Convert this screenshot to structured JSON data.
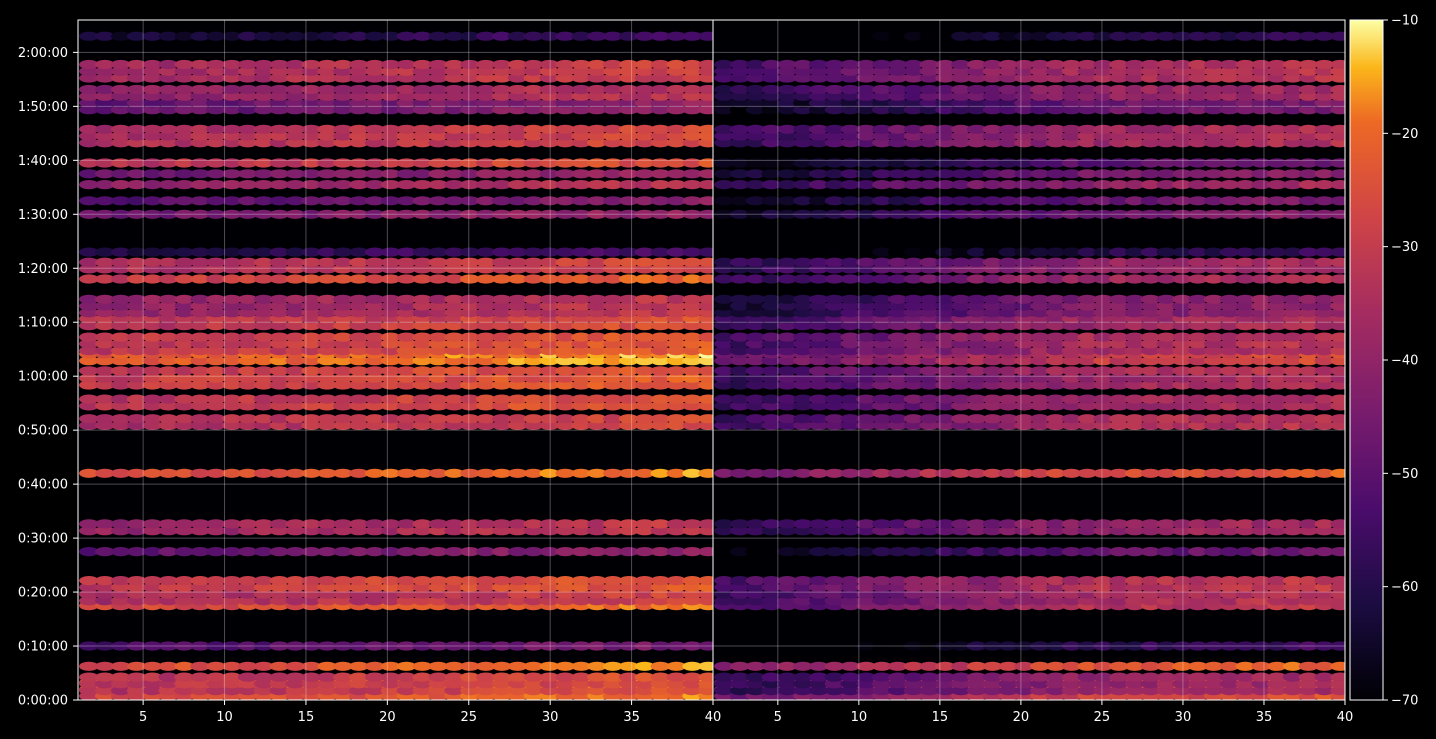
{
  "figure": {
    "background": "#000000",
    "axis_color": "#ffffff",
    "grid_color": "#ffffff"
  },
  "chart_data": {
    "type": "heatmap",
    "title": "",
    "colormap": "inferno",
    "x_tick_labels_left": [
      "5",
      "10",
      "15",
      "20",
      "25",
      "30",
      "35",
      "40"
    ],
    "x_tick_labels_right": [
      "5",
      "10",
      "15",
      "20",
      "25",
      "30",
      "35",
      "40"
    ],
    "y_tick_labels": [
      "0:00:00",
      "0:10:00",
      "0:20:00",
      "0:30:00",
      "0:40:00",
      "0:50:00",
      "1:00:00",
      "1:10:00",
      "1:20:00",
      "1:30:00",
      "1:40:00",
      "1:50:00",
      "2:00:00"
    ],
    "colorbar": {
      "range": [
        -70,
        -10
      ],
      "tick_labels": [
        "−10",
        "−20",
        "−30",
        "−40",
        "−50",
        "−60",
        "−70"
      ]
    },
    "panels": [
      {
        "name": "",
        "x_range": [
          1,
          40
        ],
        "y_range_seconds": [
          0,
          7560
        ],
        "background_level": -70
      },
      {
        "name": "",
        "x_range": [
          1,
          40
        ],
        "y_range_seconds": [
          0,
          7560
        ],
        "background_level": -70
      }
    ],
    "bands": [
      {
        "time": "0:02:00",
        "level_left": -24,
        "level_right": -30,
        "thickness": 3
      },
      {
        "time": "0:03:00",
        "level_left": -30,
        "level_right": -42,
        "thickness": 3
      },
      {
        "time": "0:06:15",
        "level_left": -23,
        "level_right": -26,
        "thickness": 1
      },
      {
        "time": "0:10:00",
        "level_left": -50,
        "level_right": -60,
        "thickness": 1
      },
      {
        "time": "0:17:30",
        "level_left": -24,
        "level_right": -36,
        "thickness": 1
      },
      {
        "time": "0:19:00",
        "level_left": -33,
        "level_right": -38,
        "thickness": 2
      },
      {
        "time": "0:21:30",
        "level_left": -28,
        "level_right": -36,
        "thickness": 2
      },
      {
        "time": "0:27:30",
        "level_left": -46,
        "level_right": -52,
        "thickness": 1
      },
      {
        "time": "0:32:00",
        "level_left": -36,
        "level_right": -42,
        "thickness": 2
      },
      {
        "time": "0:42:00",
        "level_left": -23,
        "level_right": -28,
        "thickness": 1
      },
      {
        "time": "0:51:30",
        "level_left": -32,
        "level_right": -38,
        "thickness": 2
      },
      {
        "time": "0:54:30",
        "level_left": -28,
        "level_right": -40,
        "thickness": 1
      },
      {
        "time": "0:55:45",
        "level_left": -30,
        "level_right": -40,
        "thickness": 1
      },
      {
        "time": "0:59:00",
        "level_left": -27,
        "level_right": -40,
        "thickness": 2
      },
      {
        "time": "1:01:00",
        "level_left": -28,
        "level_right": -38,
        "thickness": 1
      },
      {
        "time": "1:03:30",
        "level_left": -20,
        "level_right": -32,
        "thickness": 2
      },
      {
        "time": "1:06:00",
        "level_left": -28,
        "level_right": -38,
        "thickness": 3
      },
      {
        "time": "1:10:00",
        "level_left": -30,
        "level_right": -40,
        "thickness": 2
      },
      {
        "time": "1:13:00",
        "level_left": -37,
        "level_right": -46,
        "thickness": 3
      },
      {
        "time": "1:18:00",
        "level_left": -27,
        "level_right": -40,
        "thickness": 1
      },
      {
        "time": "1:20:30",
        "level_left": -32,
        "level_right": -42,
        "thickness": 2
      },
      {
        "time": "1:23:00",
        "level_left": -58,
        "level_right": -62,
        "thickness": 1
      },
      {
        "time": "1:30:00",
        "level_left": -44,
        "level_right": -48,
        "thickness": 1
      },
      {
        "time": "1:32:30",
        "level_left": -48,
        "level_right": -50,
        "thickness": 1
      },
      {
        "time": "1:35:30",
        "level_left": -38,
        "level_right": -42,
        "thickness": 1
      },
      {
        "time": "1:37:30",
        "level_left": -44,
        "level_right": -48,
        "thickness": 1
      },
      {
        "time": "1:39:30",
        "level_left": -30,
        "level_right": -52,
        "thickness": 1
      },
      {
        "time": "1:44:30",
        "level_left": -32,
        "level_right": -40,
        "thickness": 3
      },
      {
        "time": "1:50:00",
        "level_left": -46,
        "level_right": -50,
        "thickness": 2
      },
      {
        "time": "1:52:30",
        "level_left": -38,
        "level_right": -42,
        "thickness": 2
      },
      {
        "time": "1:56:30",
        "level_left": -34,
        "level_right": -38,
        "thickness": 3
      },
      {
        "time": "2:03:00",
        "level_left": -60,
        "level_right": -62,
        "thickness": 1
      }
    ],
    "x_trend": "intensity increases with x (brightest near x=35–40)",
    "grid": true,
    "legend": "colorbar-right"
  }
}
